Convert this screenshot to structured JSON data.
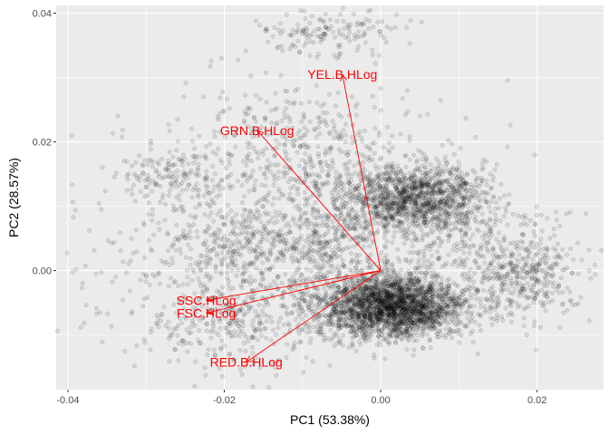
{
  "chart_data": {
    "type": "scatter",
    "xlabel": "PC1 (53.38%)",
    "ylabel": "PC2 (28.57%)",
    "xlim": [
      -0.0415,
      0.0285
    ],
    "ylim": [
      -0.0185,
      0.0412
    ],
    "x_ticks": [
      -0.04,
      -0.02,
      0.0,
      0.02
    ],
    "y_ticks": [
      0.0,
      0.02,
      0.04
    ],
    "x_tick_labels": [
      "-0.04",
      "-0.02",
      "0.00",
      "0.02"
    ],
    "y_tick_labels": [
      "0.00",
      "0.02",
      "0.04"
    ],
    "grid": true,
    "point_color": "#000000",
    "point_alpha": 0.12,
    "loading_color": "#ff0000",
    "panel_background": "#ebebeb",
    "gridline_color": "#ffffff",
    "clusters": [
      {
        "cx": 0.0015,
        "cy": -0.0055,
        "sx": 0.0048,
        "sy": 0.0025,
        "n": 2600
      },
      {
        "cx": 0.0045,
        "cy": 0.0115,
        "sx": 0.0045,
        "sy": 0.0025,
        "n": 1300
      },
      {
        "cx": 0.0185,
        "cy": -0.0005,
        "sx": 0.0035,
        "sy": 0.0035,
        "n": 380
      },
      {
        "cx": -0.0155,
        "cy": 0.004,
        "sx": 0.0055,
        "sy": 0.0035,
        "n": 420
      },
      {
        "cx": -0.0265,
        "cy": 0.0145,
        "sx": 0.0035,
        "sy": 0.0025,
        "n": 160
      },
      {
        "cx": -0.0065,
        "cy": 0.037,
        "sx": 0.0045,
        "sy": 0.0018,
        "n": 150
      },
      {
        "cx": -0.0115,
        "cy": 0.019,
        "sx": 0.0055,
        "sy": 0.0045,
        "n": 260
      },
      {
        "cx": -0.0185,
        "cy": -0.0075,
        "sx": 0.0065,
        "sy": 0.004,
        "n": 380
      },
      {
        "cx": -0.006,
        "cy": 0.0055,
        "sx": 0.004,
        "sy": 0.0055,
        "n": 300
      },
      {
        "cx": -0.009,
        "cy": 0.012,
        "sx": 0.012,
        "sy": 0.009,
        "n": 380
      },
      {
        "cx": 0.01,
        "cy": 0.003,
        "sx": 0.005,
        "sy": 0.004,
        "n": 220
      },
      {
        "cx": -0.03,
        "cy": 0.0,
        "sx": 0.006,
        "sy": 0.006,
        "n": 90
      }
    ],
    "loadings": [
      {
        "label": "YEL.B.HLog",
        "x": -0.0049,
        "y": 0.0305
      },
      {
        "label": "GRN.B.HLog",
        "x": -0.0158,
        "y": 0.0218
      },
      {
        "label": "SSC.HLog",
        "x": -0.0223,
        "y": -0.0046
      },
      {
        "label": "FSC.HLog",
        "x": -0.0223,
        "y": -0.0066
      },
      {
        "label": "RED.B.HLog",
        "x": -0.0172,
        "y": -0.0142
      }
    ]
  }
}
